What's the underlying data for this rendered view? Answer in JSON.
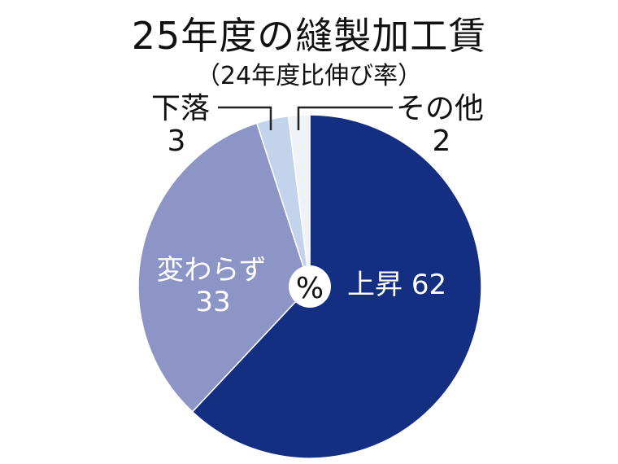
{
  "chart_data": {
    "type": "pie",
    "title": "25年度の縫製加工賃",
    "subtitle": "（24年度比伸び率）",
    "unit_label": "%",
    "slices": [
      {
        "label": "上昇",
        "value": 62,
        "color": "#142f82"
      },
      {
        "label": "変わらず",
        "value": 33,
        "color": "#8c95c6"
      },
      {
        "label": "下落",
        "value": 3,
        "color": "#c3d3ec"
      },
      {
        "label": "その他",
        "value": 2,
        "color": "#eff2f7"
      }
    ]
  }
}
